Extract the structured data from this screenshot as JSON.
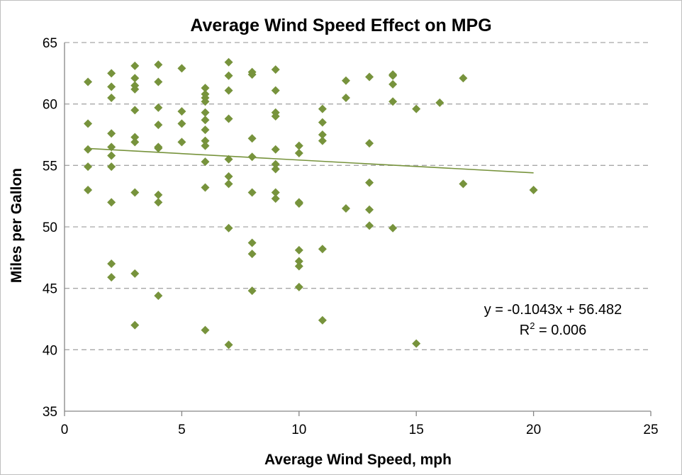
{
  "chart_data": {
    "type": "scatter",
    "title": "Average Wind Speed Effect on MPG",
    "xlabel": "Average Wind Speed, mph",
    "ylabel": "Miles per Gallon",
    "xlim": [
      0,
      25
    ],
    "ylim": [
      35,
      65
    ],
    "xticks": [
      "0",
      "5",
      "10",
      "15",
      "20",
      "25"
    ],
    "yticks": [
      "35",
      "40",
      "45",
      "50",
      "55",
      "60",
      "65"
    ],
    "grid": "horizontal dashed",
    "legend": "none",
    "marker_color": "#77933c",
    "trendline": {
      "slope": -0.1043,
      "intercept": 56.482,
      "x_range": [
        1,
        20
      ],
      "equation": "y = -0.1043x + 56.482",
      "r_squared_prefix": "R",
      "r_squared_sup": "2",
      "r_squared_value": " = 0.006"
    },
    "points": [
      [
        1,
        61.8
      ],
      [
        1,
        58.4
      ],
      [
        1,
        56.3
      ],
      [
        1,
        54.9
      ],
      [
        1,
        53.0
      ],
      [
        2,
        62.5
      ],
      [
        2,
        61.4
      ],
      [
        2,
        60.5
      ],
      [
        2,
        57.6
      ],
      [
        2,
        56.5
      ],
      [
        2,
        55.8
      ],
      [
        2,
        54.9
      ],
      [
        2,
        52.0
      ],
      [
        2,
        47.0
      ],
      [
        2,
        45.9
      ],
      [
        3,
        63.1
      ],
      [
        3,
        62.1
      ],
      [
        3,
        61.5
      ],
      [
        3,
        61.2
      ],
      [
        3,
        59.5
      ],
      [
        3,
        57.3
      ],
      [
        3,
        56.9
      ],
      [
        3,
        52.8
      ],
      [
        3,
        46.2
      ],
      [
        3,
        42.0
      ],
      [
        4,
        63.2
      ],
      [
        4,
        61.8
      ],
      [
        4,
        59.7
      ],
      [
        4,
        58.3
      ],
      [
        4,
        56.5
      ],
      [
        4,
        56.4
      ],
      [
        4,
        52.6
      ],
      [
        4,
        52.0
      ],
      [
        4,
        44.4
      ],
      [
        5,
        62.9
      ],
      [
        5,
        59.4
      ],
      [
        5,
        58.4
      ],
      [
        5,
        56.9
      ],
      [
        6,
        61.3
      ],
      [
        6,
        60.8
      ],
      [
        6,
        60.5
      ],
      [
        6,
        60.2
      ],
      [
        6,
        59.3
      ],
      [
        6,
        58.7
      ],
      [
        6,
        57.9
      ],
      [
        6,
        57.0
      ],
      [
        6,
        56.6
      ],
      [
        6,
        55.3
      ],
      [
        6,
        53.2
      ],
      [
        6,
        41.6
      ],
      [
        7,
        63.4
      ],
      [
        7,
        62.3
      ],
      [
        7,
        61.1
      ],
      [
        7,
        58.8
      ],
      [
        7,
        55.5
      ],
      [
        7,
        54.1
      ],
      [
        7,
        53.5
      ],
      [
        7,
        49.9
      ],
      [
        7,
        40.4
      ],
      [
        8,
        62.6
      ],
      [
        8,
        62.4
      ],
      [
        8,
        57.2
      ],
      [
        8,
        55.7
      ],
      [
        8,
        52.8
      ],
      [
        8,
        48.7
      ],
      [
        8,
        47.8
      ],
      [
        8,
        44.8
      ],
      [
        9,
        62.8
      ],
      [
        9,
        61.1
      ],
      [
        9,
        59.3
      ],
      [
        9,
        59.0
      ],
      [
        9,
        56.3
      ],
      [
        9,
        55.1
      ],
      [
        9,
        54.7
      ],
      [
        9,
        52.8
      ],
      [
        9,
        52.3
      ],
      [
        10,
        56.6
      ],
      [
        10,
        56.0
      ],
      [
        10,
        52.0
      ],
      [
        10,
        51.9
      ],
      [
        10,
        48.1
      ],
      [
        10,
        47.2
      ],
      [
        10,
        46.8
      ],
      [
        10,
        45.1
      ],
      [
        11,
        59.6
      ],
      [
        11,
        58.5
      ],
      [
        11,
        57.5
      ],
      [
        11,
        57.0
      ],
      [
        11,
        48.2
      ],
      [
        11,
        42.4
      ],
      [
        12,
        61.9
      ],
      [
        12,
        60.5
      ],
      [
        12,
        51.5
      ],
      [
        13,
        62.2
      ],
      [
        13,
        56.8
      ],
      [
        13,
        53.6
      ],
      [
        13,
        51.4
      ],
      [
        13,
        50.1
      ],
      [
        14,
        62.4
      ],
      [
        14,
        62.3
      ],
      [
        14,
        61.6
      ],
      [
        14,
        60.2
      ],
      [
        14,
        49.9
      ],
      [
        15,
        59.6
      ],
      [
        15,
        40.5
      ],
      [
        16,
        60.1
      ],
      [
        17,
        62.1
      ],
      [
        17,
        53.5
      ],
      [
        20,
        53.0
      ]
    ]
  }
}
